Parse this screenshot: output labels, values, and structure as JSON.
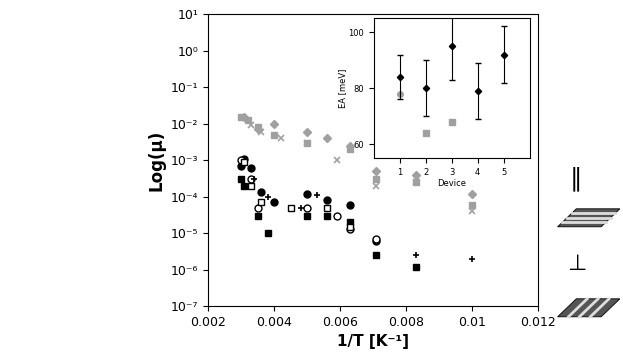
{
  "chart_data": [
    {
      "type": "scatter",
      "x_label": "1/T [K⁻¹]",
      "y_label": "Log(μ)",
      "log": "y",
      "xlim": [
        0.002,
        0.012
      ],
      "xticks": [
        0.002,
        0.004,
        0.006,
        0.008,
        0.01,
        0.012
      ],
      "ylim": [
        1e-07,
        10
      ],
      "yticks": [
        {
          "value": 1e-07,
          "label": "10⁻⁷"
        },
        {
          "value": 1e-06,
          "label": "10⁻⁶"
        },
        {
          "value": 1e-05,
          "label": "10⁻⁵"
        },
        {
          "value": 0.0001,
          "label": "10⁻⁴"
        },
        {
          "value": 0.001,
          "label": "10⁻³"
        },
        {
          "value": 0.01,
          "label": "10⁻²"
        },
        {
          "value": 0.1,
          "label": "10⁻¹"
        },
        {
          "value": 1,
          "label": "10⁰"
        },
        {
          "value": 10,
          "label": "10¹"
        }
      ],
      "annotations": [
        "∥",
        "⊥"
      ],
      "series": [
        {
          "color": "#a0a0a0",
          "marker": "square",
          "x": [
            0.003,
            0.0032,
            0.0035,
            0.004,
            0.005,
            0.0063,
            0.0071,
            0.0083,
            0.01
          ],
          "values": [
            0.015,
            0.013,
            0.008,
            0.005,
            0.003,
            0.002,
            0.0003,
            0.00025,
            6e-05
          ]
        },
        {
          "color": "#a0a0a0",
          "marker": "diamond",
          "x": [
            0.0031,
            0.0035,
            0.004,
            0.005,
            0.0056,
            0.0063,
            0.0071,
            0.0083,
            0.01
          ],
          "values": [
            0.015,
            0.007,
            0.01,
            0.006,
            0.004,
            0.0025,
            0.0005,
            0.0004,
            0.00012
          ]
        },
        {
          "color": "#a0a0a0",
          "marker": "x",
          "x": [
            0.0033,
            0.0036,
            0.0042,
            0.005,
            0.0059,
            0.0071,
            0.0083,
            0.01
          ],
          "values": [
            0.009,
            0.006,
            0.004,
            0.003,
            0.001,
            0.0002,
            0.00025,
            4e-05
          ]
        },
        {
          "color": "#000000",
          "marker": "circle",
          "x": [
            0.003,
            0.0031,
            0.0033,
            0.0036,
            0.004,
            0.005,
            0.0056,
            0.0063,
            0.0071
          ],
          "values": [
            0.0007,
            0.0011,
            0.0006,
            0.00013,
            7e-05,
            0.00012,
            8e-05,
            6e-05,
            6e-06
          ]
        },
        {
          "color": "#000000",
          "marker": "square",
          "x": [
            0.003,
            0.0031,
            0.0035,
            0.0038,
            0.005,
            0.0056,
            0.0063,
            0.0071,
            0.0083
          ],
          "values": [
            0.0003,
            0.0002,
            3e-05,
            1e-05,
            3e-05,
            3e-05,
            2e-05,
            2.5e-06,
            1.2e-06
          ]
        },
        {
          "color": "#000000",
          "marker": "open_circle",
          "x": [
            0.003,
            0.0033,
            0.0035,
            0.005,
            0.0059,
            0.0063,
            0.0071
          ],
          "values": [
            0.001,
            0.0003,
            5e-05,
            5e-05,
            3e-05,
            1.3e-05,
            7e-06
          ]
        },
        {
          "color": "#000000",
          "marker": "open_square",
          "x": [
            0.0031,
            0.0033,
            0.0036,
            0.0045,
            0.0056,
            0.0063
          ],
          "values": [
            0.0009,
            0.0002,
            7e-05,
            5e-05,
            5e-05,
            1.5e-05
          ]
        },
        {
          "color": "#000000",
          "marker": "plus",
          "x": [
            0.0034,
            0.0038,
            0.0048,
            0.0053,
            0.0063,
            0.0083,
            0.01
          ],
          "values": [
            0.0003,
            0.0001,
            5e-05,
            0.00011,
            2e-05,
            2.5e-06,
            2e-06
          ]
        }
      ]
    },
    {
      "type": "scatter",
      "x_label": "Device",
      "y_label": "EA [meV]",
      "xlim": [
        0,
        6
      ],
      "xticks": [
        1,
        2,
        3,
        4,
        5
      ],
      "ylim": [
        55,
        105
      ],
      "yticks": [
        60,
        80,
        100
      ],
      "series": [
        {
          "color": "#a0a0a0",
          "marker": "circle",
          "x": [
            1
          ],
          "values": [
            78
          ]
        },
        {
          "color": "#a0a0a0",
          "marker": "square",
          "x": [
            2,
            3
          ],
          "values": [
            64,
            68
          ]
        },
        {
          "color": "#000000",
          "marker": "diamond",
          "x": [
            1,
            2,
            3,
            4,
            5
          ],
          "values": [
            84,
            80,
            95,
            79,
            92
          ],
          "errors": [
            8,
            10,
            12,
            10,
            10
          ]
        }
      ]
    }
  ]
}
